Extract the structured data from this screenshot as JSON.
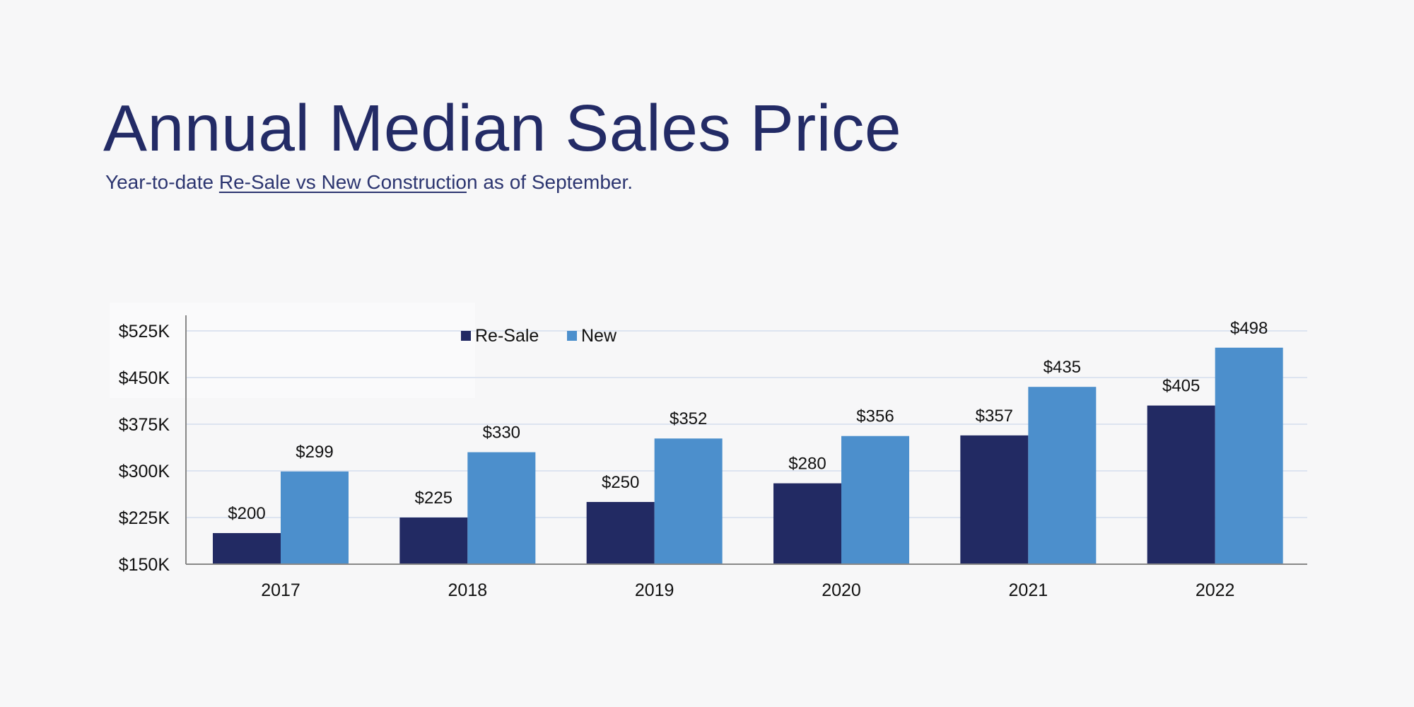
{
  "title": "Annual Median Sales Price",
  "subtitle": {
    "before": "Year-to-date ",
    "underlined": "Re-Sale vs New Constructio",
    "after": "n as of September."
  },
  "chart_data": {
    "type": "bar",
    "categories": [
      "2017",
      "2018",
      "2019",
      "2020",
      "2021",
      "2022"
    ],
    "series": [
      {
        "name": "Re-Sale",
        "color": "#222a63",
        "values": [
          200,
          225,
          250,
          280,
          357,
          405
        ],
        "labels": [
          "$200",
          "$225",
          "$250",
          "$280",
          "$357",
          "$405"
        ]
      },
      {
        "name": "New",
        "color": "#4c8fcc",
        "values": [
          299,
          330,
          352,
          356,
          435,
          498
        ],
        "labels": [
          "$299",
          "$330",
          "$352",
          "$356",
          "$435",
          "$498"
        ]
      }
    ],
    "ylim": [
      150,
      525
    ],
    "yunit": "thousands of dollars",
    "yticks": [
      150,
      225,
      300,
      375,
      450,
      525
    ],
    "ytick_labels": [
      "$150K",
      "$225K",
      "$300K",
      "$375K",
      "$450K",
      "$525K"
    ],
    "grid": true,
    "legend_position": "top-center",
    "xlabel": "",
    "ylabel": ""
  }
}
